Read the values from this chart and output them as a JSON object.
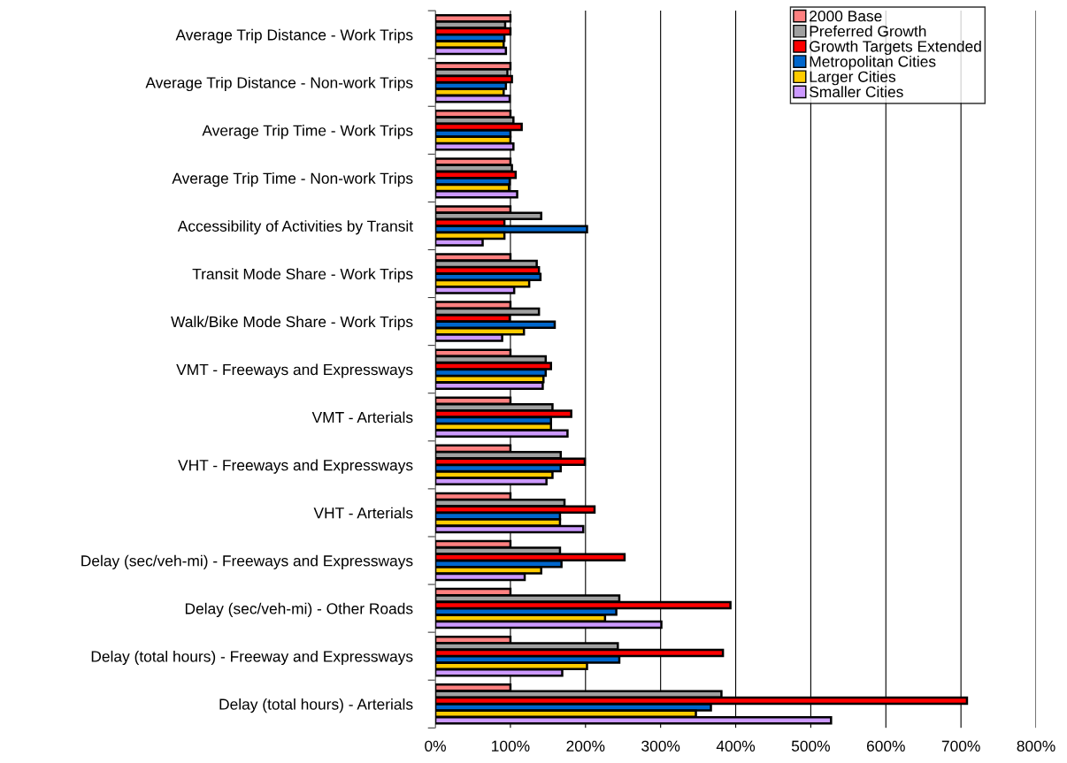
{
  "chart_data": {
    "type": "bar",
    "orientation": "horizontal",
    "categories": [
      "Average Trip Distance - Work Trips",
      "Average Trip Distance - Non-work Trips",
      "Average Trip Time - Work Trips",
      "Average Trip Time - Non-work Trips",
      "Accessibility of Activities by Transit",
      "Transit Mode Share - Work Trips",
      "Walk/Bike Mode Share - Work Trips",
      "VMT - Freeways and Expressways",
      "VMT - Arterials",
      "VHT - Freeways and Expressways",
      "VHT - Arterials",
      "Delay (sec/veh-mi) - Freeways and Expressways",
      "Delay (sec/veh-mi) - Other Roads",
      "Delay (total hours) - Freeway and Expressways",
      "Delay (total hours) - Arterials"
    ],
    "series": [
      {
        "name": "2000 Base",
        "color": "#ff8080",
        "values": [
          100,
          100,
          100,
          100,
          100,
          100,
          100,
          100,
          100,
          100,
          100,
          100,
          100,
          100,
          100
        ]
      },
      {
        "name": "Preferred Growth",
        "color": "#a0a0a0",
        "values": [
          93,
          96,
          104,
          102,
          141,
          135,
          138,
          147,
          156,
          167,
          172,
          166,
          245,
          243,
          381
        ]
      },
      {
        "name": "Growth Targets Extended",
        "color": "#ff0000",
        "values": [
          100,
          102,
          115,
          107,
          92,
          138,
          99,
          154,
          181,
          199,
          212,
          252,
          393,
          383,
          708
        ]
      },
      {
        "name": "Metropolitan Cities",
        "color": "#0066cc",
        "values": [
          92,
          94,
          100,
          99,
          202,
          140,
          159,
          147,
          154,
          167,
          166,
          168,
          241,
          245,
          367
        ]
      },
      {
        "name": "Larger Cities",
        "color": "#ffcc00",
        "values": [
          91,
          91,
          100,
          98,
          92,
          125,
          118,
          144,
          154,
          156,
          166,
          141,
          226,
          202,
          347
        ]
      },
      {
        "name": "Smaller Cities",
        "color": "#cc99ff",
        "values": [
          94,
          99,
          104,
          109,
          63,
          105,
          89,
          143,
          176,
          148,
          197,
          119,
          301,
          169,
          527
        ]
      }
    ],
    "xlim": [
      0,
      800
    ],
    "xticks": [
      {
        "value": 0,
        "label": "0%"
      },
      {
        "value": 100,
        "label": "100%"
      },
      {
        "value": 200,
        "label": "200%"
      },
      {
        "value": 300,
        "label": "300%"
      },
      {
        "value": 400,
        "label": "400%"
      },
      {
        "value": 500,
        "label": "500%"
      },
      {
        "value": 600,
        "label": "600%"
      },
      {
        "value": 700,
        "label": "700%"
      },
      {
        "value": 800,
        "label": "800%"
      }
    ],
    "grid": "x",
    "legend": "top right"
  }
}
